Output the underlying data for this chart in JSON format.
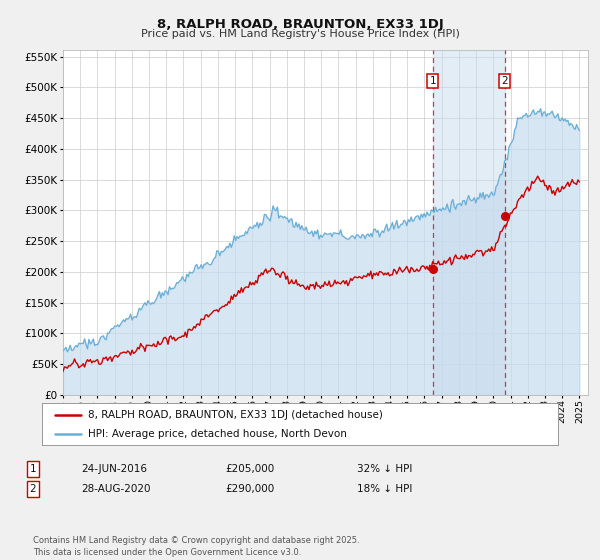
{
  "title": "8, RALPH ROAD, BRAUNTON, EX33 1DJ",
  "subtitle": "Price paid vs. HM Land Registry's House Price Index (HPI)",
  "ylim": [
    0,
    560000
  ],
  "xlim_start": 1995.0,
  "xlim_end": 2025.5,
  "yticks": [
    0,
    50000,
    100000,
    150000,
    200000,
    250000,
    300000,
    350000,
    400000,
    450000,
    500000,
    550000
  ],
  "ytick_labels": [
    "£0",
    "£50K",
    "£100K",
    "£150K",
    "£200K",
    "£250K",
    "£300K",
    "£350K",
    "£400K",
    "£450K",
    "£500K",
    "£550K"
  ],
  "xticks": [
    1995,
    1996,
    1997,
    1998,
    1999,
    2000,
    2001,
    2002,
    2003,
    2004,
    2005,
    2006,
    2007,
    2008,
    2009,
    2010,
    2011,
    2012,
    2013,
    2014,
    2015,
    2016,
    2017,
    2018,
    2019,
    2020,
    2021,
    2022,
    2023,
    2024,
    2025
  ],
  "red_line_color": "#cc0000",
  "blue_line_color": "#6aaed6",
  "blue_fill_color": "#c6dcef",
  "vline_color": "#cc0000",
  "marker_color": "#cc0000",
  "event1_x": 2016.48,
  "event1_y": 205000,
  "event2_x": 2020.65,
  "event2_y": 290000,
  "event1_date": "24-JUN-2016",
  "event1_price": "£205,000",
  "event1_note": "32% ↓ HPI",
  "event2_date": "28-AUG-2020",
  "event2_price": "£290,000",
  "event2_note": "18% ↓ HPI",
  "legend_line1": "8, RALPH ROAD, BRAUNTON, EX33 1DJ (detached house)",
  "legend_line2": "HPI: Average price, detached house, North Devon",
  "footer": "Contains HM Land Registry data © Crown copyright and database right 2025.\nThis data is licensed under the Open Government Licence v3.0.",
  "bg_color": "#f0f0f0",
  "plot_bg_color": "#ffffff",
  "grid_color": "#cccccc"
}
